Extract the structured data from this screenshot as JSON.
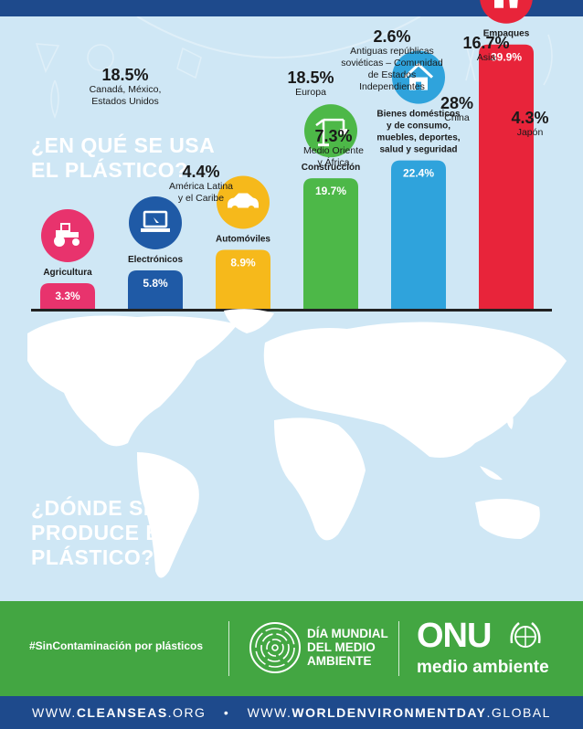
{
  "usage_title": [
    "¿EN QUÉ SE USA",
    "EL PLÁSTICO?"
  ],
  "production_title": [
    "¿DÓNDE SE",
    "PRODUCE EL",
    "PLÁSTICO?"
  ],
  "chart_data": {
    "type": "bar",
    "categories": [
      "Agricultura",
      "Electrónicos",
      "Automóviles",
      "Construcción",
      "Bienes domésticos y de consumo, muebles, deportes, salud y seguridad",
      "Empaques"
    ],
    "category_lines": [
      [
        "Agricultura"
      ],
      [
        "Electrónicos"
      ],
      [
        "Automóviles"
      ],
      [
        "Construcción"
      ],
      [
        "Bienes domésticos",
        "y de consumo,",
        "muebles, deportes,",
        "salud y seguridad"
      ],
      [
        "Empaques"
      ]
    ],
    "values": [
      3.3,
      5.8,
      8.9,
      19.7,
      22.4,
      39.9
    ],
    "value_labels": [
      "3.3%",
      "5.8%",
      "8.9%",
      "19.7%",
      "22.4%",
      "39.9%"
    ],
    "colors": [
      "#e8336d",
      "#1f5aa6",
      "#f6b91b",
      "#4db848",
      "#2fa3dc",
      "#e8243a"
    ],
    "icon_colors": [
      "#e8336d",
      "#1f5aa6",
      "#f6b91b",
      "#4db848",
      "#2fa3dc",
      "#e8243a"
    ],
    "icons": [
      "tractor-icon",
      "laptop-icon",
      "car-icon",
      "crane-icon",
      "house-icon",
      "cup-icon"
    ],
    "ylim": [
      0,
      40
    ],
    "grid": false
  },
  "regions": [
    {
      "pct": "18.5%",
      "lines": [
        "Canadá, México,",
        "Estados Unidos"
      ]
    },
    {
      "pct": "4.4%",
      "lines": [
        "América Latina",
        "y el Caribe"
      ]
    },
    {
      "pct": "18.5%",
      "lines": [
        "Europa"
      ]
    },
    {
      "pct": "2.6%",
      "lines": [
        "Antiguas repúblicas",
        "soviéticas – Comunidad",
        "de Estados",
        "Independientes"
      ]
    },
    {
      "pct": "7.3%",
      "lines": [
        "Medio Oriente",
        "y África"
      ]
    },
    {
      "pct": "16.7%",
      "lines": [
        "Asia"
      ]
    },
    {
      "pct": "28%",
      "lines": [
        "China"
      ]
    },
    {
      "pct": "4.3%",
      "lines": [
        "Japón"
      ]
    }
  ],
  "footer": {
    "hashtag": "#SinContaminación por plásticos",
    "event_lines": [
      "DÍA MUNDIAL",
      "DEL MEDIO",
      "AMBIENTE"
    ],
    "onu": "ONU",
    "onu_sub": "medio ambiente"
  },
  "links": {
    "left_pre": "WWW.",
    "left_bold": "CLEANSEAS",
    "left_post": ".ORG",
    "sep": "•",
    "right_pre": "WWW.",
    "right_bold": "WORLDENVIRONMENTDAY",
    "right_post": ".GLOBAL"
  }
}
